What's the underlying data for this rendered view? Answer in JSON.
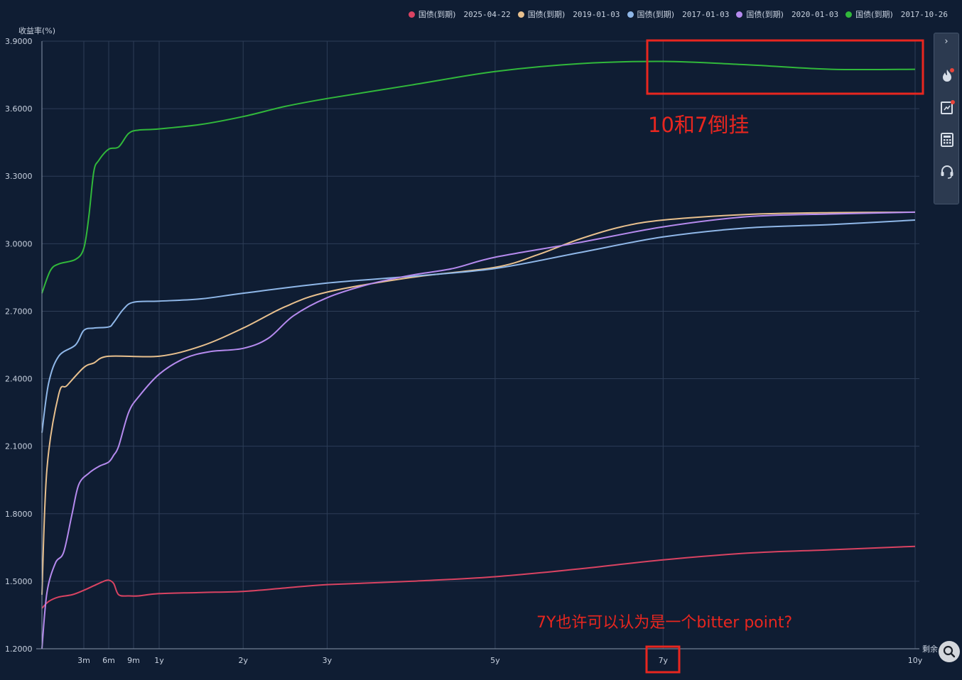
{
  "chart_data": {
    "type": "line",
    "ylabel": "收益率(%)",
    "xlabel": "剩余",
    "ylim": [
      1.2,
      3.9
    ],
    "yticks": [
      "1.2000",
      "1.5000",
      "1.8000",
      "2.1000",
      "2.4000",
      "2.7000",
      "3.0000",
      "3.3000",
      "3.6000",
      "3.9000"
    ],
    "ytick_values": [
      1.2,
      1.5,
      1.8,
      2.1,
      2.4,
      2.7,
      3.0,
      3.3,
      3.6,
      3.9
    ],
    "xticks": [
      {
        "label": "3m",
        "years": 0.25
      },
      {
        "label": "6m",
        "years": 0.5
      },
      {
        "label": "9m",
        "years": 0.75
      },
      {
        "label": "1y",
        "years": 1
      },
      {
        "label": "2y",
        "years": 2
      },
      {
        "label": "3y",
        "years": 3
      },
      {
        "label": "5y",
        "years": 5
      },
      {
        "label": "7y",
        "years": 7
      },
      {
        "label": "10y",
        "years": 10
      }
    ],
    "grid": true,
    "legend_position": "top-right",
    "series": [
      {
        "name": "国债(到期)",
        "date": "2025-04-22",
        "color": "#d94362",
        "points": [
          [
            0.0,
            1.38
          ],
          [
            0.04,
            1.41
          ],
          [
            0.1,
            1.43
          ],
          [
            0.18,
            1.44
          ],
          [
            0.25,
            1.46
          ],
          [
            0.35,
            1.48
          ],
          [
            0.45,
            1.5
          ],
          [
            0.5,
            1.505
          ],
          [
            0.55,
            1.49
          ],
          [
            0.6,
            1.44
          ],
          [
            0.7,
            1.435
          ],
          [
            0.8,
            1.435
          ],
          [
            1.0,
            1.445
          ],
          [
            1.5,
            1.45
          ],
          [
            2.0,
            1.455
          ],
          [
            2.5,
            1.47
          ],
          [
            3.0,
            1.485
          ],
          [
            4.0,
            1.5
          ],
          [
            5.0,
            1.52
          ],
          [
            6.0,
            1.555
          ],
          [
            7.0,
            1.595
          ],
          [
            8.0,
            1.625
          ],
          [
            9.0,
            1.64
          ],
          [
            10.0,
            1.655
          ]
        ]
      },
      {
        "name": "国债(到期)",
        "date": "2019-01-03",
        "color": "#e8c08e",
        "points": [
          [
            0.0,
            1.44
          ],
          [
            0.03,
            2.0
          ],
          [
            0.1,
            2.33
          ],
          [
            0.15,
            2.37
          ],
          [
            0.25,
            2.45
          ],
          [
            0.35,
            2.47
          ],
          [
            0.5,
            2.5
          ],
          [
            1.0,
            2.5
          ],
          [
            1.5,
            2.545
          ],
          [
            2.0,
            2.625
          ],
          [
            2.5,
            2.72
          ],
          [
            3.0,
            2.785
          ],
          [
            4.0,
            2.85
          ],
          [
            5.0,
            2.895
          ],
          [
            5.5,
            2.95
          ],
          [
            6.0,
            3.02
          ],
          [
            6.5,
            3.075
          ],
          [
            7.0,
            3.105
          ],
          [
            8.0,
            3.13
          ],
          [
            9.0,
            3.138
          ],
          [
            10.0,
            3.14
          ]
        ]
      },
      {
        "name": "国债(到期)",
        "date": "2017-01-03",
        "color": "#8fb7e8",
        "points": [
          [
            0.0,
            2.16
          ],
          [
            0.04,
            2.38
          ],
          [
            0.1,
            2.5
          ],
          [
            0.2,
            2.55
          ],
          [
            0.25,
            2.615
          ],
          [
            0.35,
            2.625
          ],
          [
            0.5,
            2.63
          ],
          [
            0.55,
            2.65
          ],
          [
            0.65,
            2.71
          ],
          [
            0.75,
            2.74
          ],
          [
            1.0,
            2.745
          ],
          [
            1.5,
            2.755
          ],
          [
            2.0,
            2.78
          ],
          [
            3.0,
            2.825
          ],
          [
            4.0,
            2.855
          ],
          [
            5.0,
            2.89
          ],
          [
            6.0,
            2.96
          ],
          [
            7.0,
            3.03
          ],
          [
            8.0,
            3.07
          ],
          [
            9.0,
            3.085
          ],
          [
            10.0,
            3.105
          ]
        ]
      },
      {
        "name": "国债(到期)",
        "date": "2020-01-03",
        "color": "#b58aee",
        "points": [
          [
            0.0,
            1.2
          ],
          [
            0.03,
            1.45
          ],
          [
            0.08,
            1.58
          ],
          [
            0.13,
            1.63
          ],
          [
            0.18,
            1.8
          ],
          [
            0.22,
            1.93
          ],
          [
            0.3,
            1.98
          ],
          [
            0.4,
            2.01
          ],
          [
            0.5,
            2.03
          ],
          [
            0.55,
            2.06
          ],
          [
            0.6,
            2.1
          ],
          [
            0.7,
            2.25
          ],
          [
            0.8,
            2.32
          ],
          [
            1.0,
            2.42
          ],
          [
            1.3,
            2.49
          ],
          [
            1.6,
            2.52
          ],
          [
            2.0,
            2.535
          ],
          [
            2.3,
            2.58
          ],
          [
            2.6,
            2.68
          ],
          [
            3.0,
            2.76
          ],
          [
            3.5,
            2.82
          ],
          [
            4.0,
            2.86
          ],
          [
            4.5,
            2.89
          ],
          [
            5.0,
            2.94
          ],
          [
            6.0,
            3.005
          ],
          [
            7.0,
            3.075
          ],
          [
            8.0,
            3.12
          ],
          [
            9.0,
            3.132
          ],
          [
            10.0,
            3.14
          ]
        ]
      },
      {
        "name": "国债(到期)",
        "date": "2017-10-26",
        "color": "#31b83b",
        "points": [
          [
            0.0,
            2.78
          ],
          [
            0.05,
            2.88
          ],
          [
            0.1,
            2.91
          ],
          [
            0.2,
            2.93
          ],
          [
            0.25,
            2.98
          ],
          [
            0.3,
            3.12
          ],
          [
            0.35,
            3.32
          ],
          [
            0.4,
            3.37
          ],
          [
            0.5,
            3.42
          ],
          [
            0.6,
            3.43
          ],
          [
            0.7,
            3.49
          ],
          [
            0.8,
            3.505
          ],
          [
            1.0,
            3.51
          ],
          [
            1.5,
            3.53
          ],
          [
            2.0,
            3.565
          ],
          [
            2.5,
            3.61
          ],
          [
            3.0,
            3.645
          ],
          [
            4.0,
            3.705
          ],
          [
            5.0,
            3.765
          ],
          [
            6.0,
            3.8
          ],
          [
            7.0,
            3.81
          ],
          [
            8.0,
            3.795
          ],
          [
            9.0,
            3.775
          ],
          [
            10.0,
            3.775
          ]
        ]
      }
    ],
    "annotations": [
      {
        "text": "10和7倒挂"
      },
      {
        "text": "7Y也许可以认为是一个bitter point?"
      }
    ]
  },
  "toolbar": {
    "collapse_glyph": "›",
    "buttons": [
      {
        "icon": "flame-icon"
      },
      {
        "icon": "report-icon"
      },
      {
        "icon": "calculator-icon"
      },
      {
        "icon": "headset-icon"
      }
    ]
  },
  "zoom_icon": "search-icon",
  "colors": {
    "background": "#0f1d33",
    "grid": "#2d3d57",
    "axis": "#8a97ab",
    "tick_text": "#c9d2e0",
    "annotation": "#e8261f"
  }
}
